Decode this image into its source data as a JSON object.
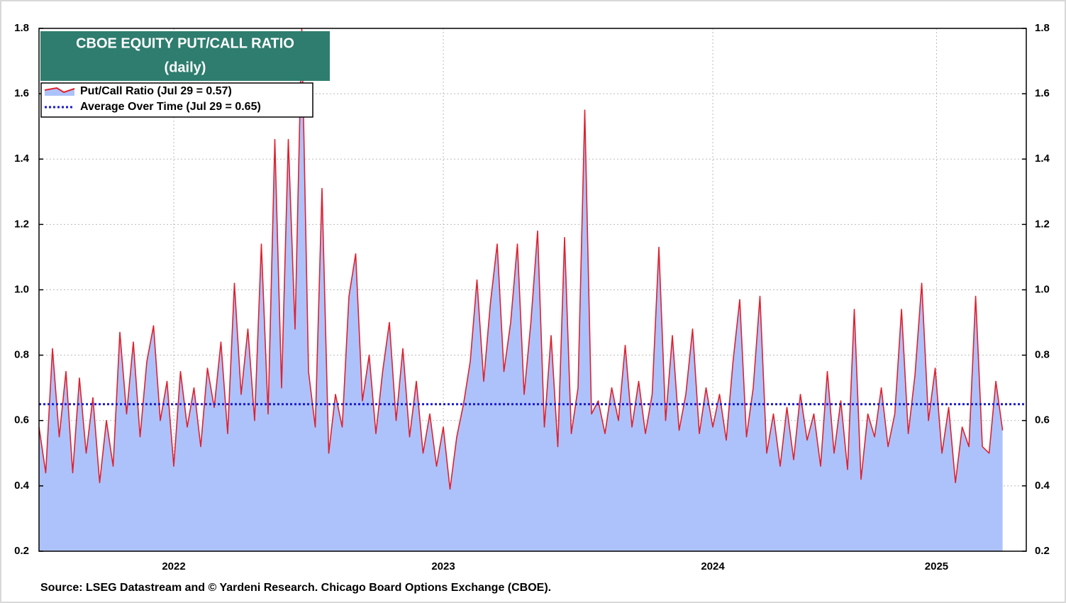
{
  "chart_data": {
    "type": "area",
    "title": "CBOE EQUITY PUT/CALL RATIO",
    "subtitle": "(daily)",
    "source": "Source: LSEG Datastream and © Yardeni Research. Chicago Board Options Exchange (CBOE).",
    "xlim": [
      2022,
      2025.663
    ],
    "xticks": [
      {
        "value": 2022.5,
        "label": "2022"
      },
      {
        "value": 2023.5,
        "label": "2023"
      },
      {
        "value": 2024.5,
        "label": "2024"
      },
      {
        "value": 2025.33,
        "label": "2025"
      }
    ],
    "ylim": [
      0.2,
      1.8
    ],
    "yticks": [
      0.2,
      0.4,
      0.6,
      0.8,
      {
        "value": 1,
        "label": "1.0"
      },
      1.2,
      1.4,
      1.6,
      1.8
    ],
    "y2lim": [
      0.2,
      1.8
    ],
    "y2ticks": [
      0.2,
      0.4,
      0.6,
      0.8,
      {
        "value": 1,
        "label": "1.0"
      },
      1.2,
      1.4,
      1.6,
      1.8
    ],
    "grid": true,
    "legend": "upper left",
    "x": [
      2022,
      2022.025,
      2022.05,
      2022.075,
      2022.1,
      2022.125,
      2022.15,
      2022.175,
      2022.2,
      2022.225,
      2022.25,
      2022.275,
      2022.3,
      2022.325,
      2022.35,
      2022.375,
      2022.4,
      2022.425,
      2022.45,
      2022.475,
      2022.5,
      2022.525,
      2022.55,
      2022.575,
      2022.6,
      2022.625,
      2022.65,
      2022.675,
      2022.7,
      2022.725,
      2022.75,
      2022.775,
      2022.8,
      2022.825,
      2022.85,
      2022.875,
      2022.9,
      2022.925,
      2022.95,
      2022.975,
      2023,
      2023.025,
      2023.05,
      2023.075,
      2023.1,
      2023.125,
      2023.15,
      2023.175,
      2023.2,
      2023.225,
      2023.25,
      2023.275,
      2023.3,
      2023.325,
      2023.35,
      2023.375,
      2023.4,
      2023.425,
      2023.45,
      2023.475,
      2023.5,
      2023.525,
      2023.55,
      2023.575,
      2023.6,
      2023.625,
      2023.65,
      2023.675,
      2023.7,
      2023.725,
      2023.75,
      2023.775,
      2023.8,
      2023.825,
      2023.85,
      2023.875,
      2023.9,
      2023.925,
      2023.95,
      2023.975,
      2024,
      2024.025,
      2024.05,
      2024.075,
      2024.1,
      2024.125,
      2024.15,
      2024.175,
      2024.2,
      2024.225,
      2024.25,
      2024.275,
      2024.3,
      2024.325,
      2024.35,
      2024.375,
      2024.4,
      2024.425,
      2024.45,
      2024.475,
      2024.5,
      2024.525,
      2024.55,
      2024.575,
      2024.6,
      2024.625,
      2024.65,
      2024.675,
      2024.7,
      2024.725,
      2024.75,
      2024.775,
      2024.8,
      2024.825,
      2024.85,
      2024.875,
      2024.9,
      2024.925,
      2024.95,
      2024.975,
      2025,
      2025.025,
      2025.05,
      2025.075,
      2025.1,
      2025.125,
      2025.15,
      2025.175,
      2025.2,
      2025.225,
      2025.25,
      2025.275,
      2025.3,
      2025.325,
      2025.35,
      2025.375,
      2025.4,
      2025.425,
      2025.45,
      2025.475,
      2025.5,
      2025.525,
      2025.55,
      2025.575
    ],
    "series": [
      {
        "name": "Put/Call Ratio (Jul 29 = 0.57)",
        "color": "#e0202e",
        "fill": "#adc2fb",
        "values": [
          0.58,
          0.44,
          0.82,
          0.55,
          0.75,
          0.44,
          0.73,
          0.5,
          0.67,
          0.41,
          0.6,
          0.46,
          0.87,
          0.62,
          0.84,
          0.55,
          0.78,
          0.89,
          0.6,
          0.72,
          0.46,
          0.75,
          0.58,
          0.7,
          0.52,
          0.76,
          0.64,
          0.84,
          0.56,
          1.02,
          0.68,
          0.88,
          0.6,
          1.14,
          0.62,
          1.46,
          0.7,
          1.46,
          0.88,
          1.8,
          0.75,
          0.58,
          1.31,
          0.5,
          0.68,
          0.58,
          0.98,
          1.11,
          0.66,
          0.8,
          0.56,
          0.75,
          0.9,
          0.6,
          0.82,
          0.55,
          0.72,
          0.5,
          0.62,
          0.46,
          0.58,
          0.39,
          0.55,
          0.65,
          0.78,
          1.03,
          0.72,
          0.96,
          1.14,
          0.75,
          0.9,
          1.14,
          0.68,
          0.9,
          1.18,
          0.58,
          0.86,
          0.52,
          1.16,
          0.56,
          0.7,
          1.55,
          0.62,
          0.66,
          0.56,
          0.7,
          0.6,
          0.83,
          0.58,
          0.72,
          0.56,
          0.68,
          1.13,
          0.6,
          0.86,
          0.57,
          0.68,
          0.88,
          0.56,
          0.7,
          0.58,
          0.68,
          0.54,
          0.78,
          0.97,
          0.55,
          0.7,
          0.98,
          0.5,
          0.62,
          0.46,
          0.64,
          0.48,
          0.68,
          0.54,
          0.62,
          0.46,
          0.75,
          0.5,
          0.66,
          0.45,
          0.94,
          0.42,
          0.62,
          0.55,
          0.7,
          0.52,
          0.62,
          0.94,
          0.56,
          0.74,
          1.02,
          0.6,
          0.76,
          0.5,
          0.64,
          0.41,
          0.58,
          0.52,
          0.98,
          0.52,
          0.5,
          0.72,
          0.57
        ]
      },
      {
        "name": "Average Over Time (Jul 29 = 0.65)",
        "color": "#1a1ad0",
        "style": "dotted",
        "value": 0.65
      }
    ]
  }
}
